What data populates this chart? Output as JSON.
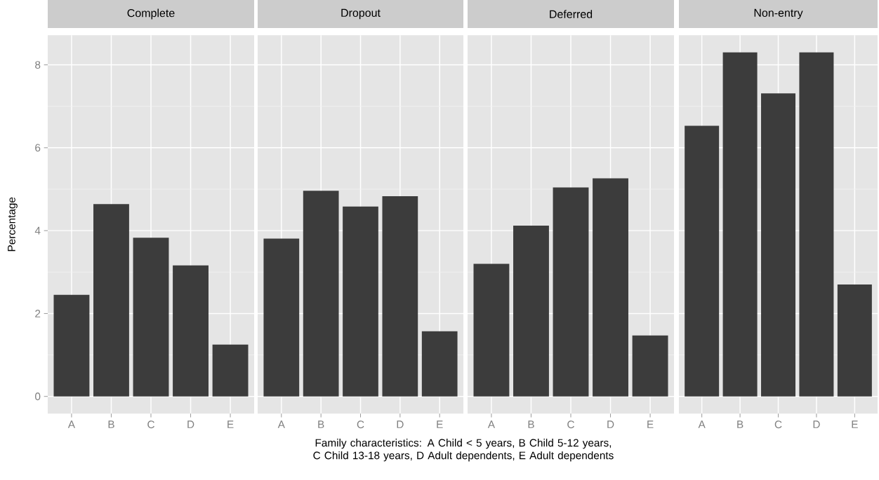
{
  "chart_data": [
    {
      "type": "bar",
      "title": "Complete",
      "ylabel": "Percentage",
      "xlabel": "Family characteristics: A Child < 5 years, B Child 5-12 years, C Child 13-18 years, D Adult dependents, E Adult dependents",
      "categories": [
        "A",
        "B",
        "C",
        "D",
        "E"
      ],
      "values": [
        2.45,
        4.64,
        3.83,
        3.16,
        1.25
      ],
      "color": "#3c3c3c",
      "ylim": [
        -0.415,
        8.715
      ],
      "yticks": [
        0,
        2,
        4,
        6,
        8
      ],
      "grid": true
    },
    {
      "type": "bar",
      "title": "Dropout",
      "categories": [
        "A",
        "B",
        "C",
        "D",
        "E"
      ],
      "values": [
        3.81,
        4.96,
        4.58,
        4.83,
        1.57
      ],
      "color": "#3c3c3c",
      "ylim": [
        -0.415,
        8.715
      ],
      "yticks": [
        0,
        2,
        4,
        6,
        8
      ],
      "grid": true,
      "tick_labels": "x"
    },
    {
      "type": "bar",
      "title": "Deferred",
      "categories": [
        "A",
        "B",
        "C",
        "D",
        "E"
      ],
      "values": [
        3.2,
        4.12,
        5.04,
        5.26,
        1.47
      ],
      "color": "#3c3c3c",
      "ylim": [
        -0.415,
        8.715
      ],
      "yticks": [
        0,
        2,
        4,
        6,
        8
      ],
      "grid": true,
      "tick_labels": "x"
    },
    {
      "type": "bar",
      "title": "Non-entry",
      "categories": [
        "A",
        "B",
        "C",
        "D",
        "E"
      ],
      "values": [
        6.53,
        8.3,
        7.31,
        8.3,
        2.7
      ],
      "color": "#3c3c3c",
      "ylim": [
        -0.415,
        8.715
      ],
      "yticks": [
        0,
        2,
        4,
        6,
        8
      ],
      "grid": true,
      "tick_labels": "x"
    }
  ]
}
